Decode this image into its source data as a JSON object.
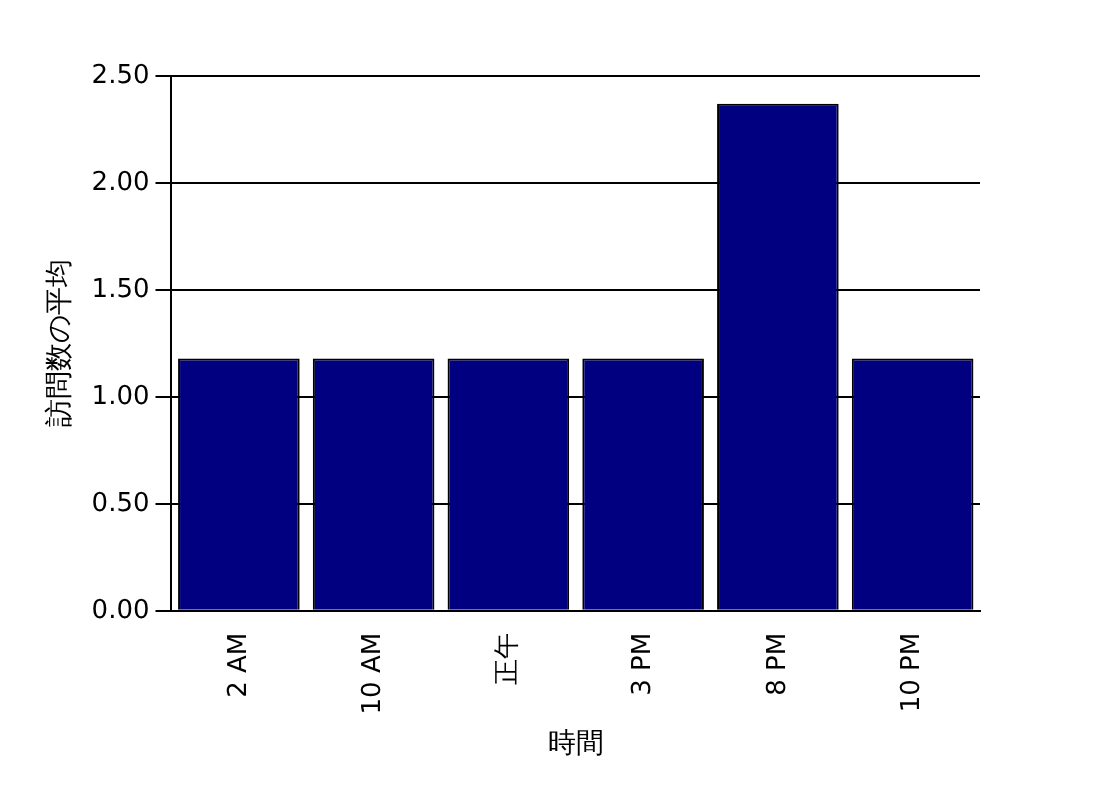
{
  "chart_data": {
    "type": "bar",
    "xlabel": "時間",
    "ylabel": "訪問数の平均",
    "categories": [
      "2 AM",
      "10 AM",
      "正午",
      "3 PM",
      "8 PM",
      "10 PM"
    ],
    "values": [
      1.18,
      1.18,
      1.18,
      1.18,
      2.37,
      1.18
    ],
    "color": "#000080",
    "ylim": [
      0,
      2.5
    ],
    "yticks": [
      {
        "value": 0,
        "label": "0.00"
      },
      {
        "value": 0.5,
        "label": "0.50"
      },
      {
        "value": 1,
        "label": "1.00"
      },
      {
        "value": 1.5,
        "label": "1.50"
      },
      {
        "value": 2,
        "label": "2.00"
      },
      {
        "value": 2.5,
        "label": "2.50"
      }
    ],
    "grid": "y"
  }
}
